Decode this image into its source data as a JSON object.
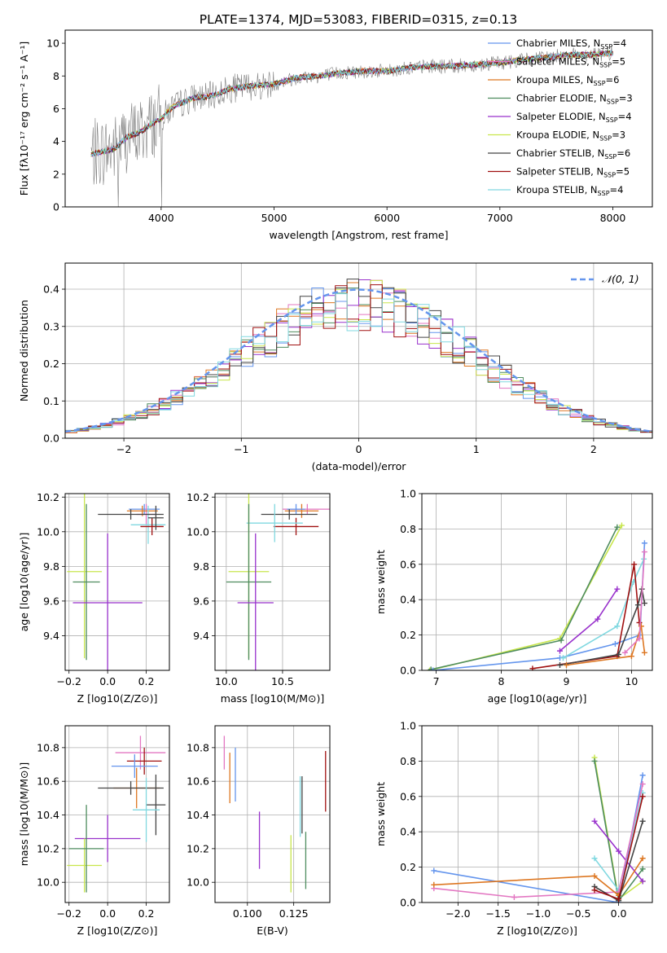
{
  "title": "PLATE=1374, MJD=53083, FIBERID=0315, z=0.13",
  "colors": {
    "gray": "#808080",
    "cornflower": "#6495ed",
    "pink": "#e377c2",
    "orange": "#dd7722",
    "green": "#4e8c5e",
    "purple": "#9932cc",
    "yellowgreen": "#c8e64b",
    "darkgray": "#444444",
    "darkred": "#a01010",
    "cyan": "#80d8e0"
  },
  "chart_data": [
    {
      "id": "spectrum",
      "type": "line",
      "xlabel": "wavelength [Angstrom, rest frame]",
      "ylabel": "Flux [fλ10⁻¹⁷ erg cm⁻² s⁻¹ A⁻¹]",
      "xlim": [
        3150,
        8350
      ],
      "ylim": [
        0,
        10.8
      ],
      "xticks": [
        4000,
        5000,
        6000,
        7000,
        8000
      ],
      "yticks": [
        0,
        2,
        4,
        6,
        8,
        10
      ],
      "grid": false,
      "legend_position": "top-right",
      "legend": [
        {
          "text": "Chabrier MILES, N_SSP=4",
          "color": "#6495ed"
        },
        {
          "text": "Salpeter MILES, N_SSP=5",
          "color": "#e377c2"
        },
        {
          "text": "Kroupa MILES, N_SSP=6",
          "color": "#dd7722"
        },
        {
          "text": "Chabrier ELODIE, N_SSP=3",
          "color": "#4e8c5e"
        },
        {
          "text": "Salpeter ELODIE, N_SSP=4",
          "color": "#9932cc"
        },
        {
          "text": "Kroupa ELODIE, N_SSP=3",
          "color": "#c8e64b"
        },
        {
          "text": "Chabrier STELIB, N_SSP=6",
          "color": "#444444"
        },
        {
          "text": "Salpeter STELIB, N_SSP=5",
          "color": "#a01010"
        },
        {
          "text": "Kroupa STELIB, N_SSP=4",
          "color": "#80d8e0"
        }
      ],
      "continuum": {
        "x": [
          3380,
          3500,
          3600,
          3700,
          3800,
          3900,
          4000,
          4100,
          4200,
          4300,
          4400,
          4500,
          4600,
          4800,
          5000,
          5200,
          5400,
          5600,
          5800,
          6000,
          6200,
          6400,
          6600,
          6800,
          7000,
          7200,
          7400,
          7600,
          7800,
          8000
        ],
        "y": [
          3.2,
          3.4,
          3.6,
          4.3,
          4.5,
          5.0,
          5.4,
          6.1,
          6.4,
          6.7,
          6.7,
          6.9,
          7.2,
          7.4,
          7.5,
          7.9,
          8.0,
          8.2,
          8.3,
          8.3,
          8.5,
          8.6,
          8.6,
          8.7,
          8.8,
          9.0,
          9.1,
          9.3,
          9.3,
          9.4
        ]
      }
    },
    {
      "id": "residuals",
      "type": "histogram",
      "xlabel": "(data-model)/error",
      "ylabel": "Normed distribution",
      "xlim": [
        -2.5,
        2.5
      ],
      "ylim": [
        0,
        0.47
      ],
      "xticks": [
        -2,
        -1,
        0,
        1,
        2
      ],
      "yticks": [
        0.0,
        0.1,
        0.2,
        0.3,
        0.4
      ],
      "grid": true,
      "legend_position": "top-right",
      "legend": [
        {
          "text": "𝒩(0, 1)",
          "color": "#6495ed",
          "style": "dashed"
        }
      ],
      "gaussian": {
        "mean": 0,
        "sigma": 1
      }
    },
    {
      "id": "age-vs-Z",
      "type": "errorbar",
      "xlabel": "Z [log10(Z/Z⊙)]",
      "ylabel": "age  [log10(age/yr)]",
      "xlim": [
        -0.22,
        0.32
      ],
      "ylim": [
        9.2,
        10.22
      ],
      "xticks": [
        -0.2,
        0.0,
        0.2
      ],
      "yticks": [
        9.4,
        9.6,
        9.8,
        10.0,
        10.2
      ],
      "grid": true,
      "points": [
        {
          "x": 0.19,
          "xerr": 0.08,
          "y": 10.13,
          "yerr": 0.03,
          "color": "#6495ed"
        },
        {
          "x": 0.2,
          "xerr": 0.05,
          "y": 10.1,
          "yerr": 0.06,
          "color": "#e377c2"
        },
        {
          "x": 0.18,
          "xerr": 0.08,
          "y": 10.12,
          "yerr": 0.03,
          "color": "#dd7722"
        },
        {
          "x": 0.21,
          "xerr": 0.09,
          "y": 10.04,
          "yerr": 0.11,
          "color": "#80d8e0"
        },
        {
          "x": 0.12,
          "xerr": 0.17,
          "y": 10.1,
          "yerr": 0.03,
          "color": "#444444"
        },
        {
          "x": 0.23,
          "xerr": 0.06,
          "y": 10.03,
          "yerr": 0.05,
          "color": "#a01010"
        },
        {
          "x": 0.25,
          "xerr": 0.04,
          "y": 10.08,
          "yerr": 0.07,
          "color": "#444444"
        },
        {
          "x": -0.12,
          "xerr": 0.09,
          "y": 9.77,
          "yerr": 0.5,
          "color": "#c8e64b"
        },
        {
          "x": -0.11,
          "xerr": 0.07,
          "y": 9.71,
          "yerr": 0.45,
          "color": "#4e8c5e"
        },
        {
          "x": 0.0,
          "xerr": 0.18,
          "y": 9.59,
          "yerr": 0.4,
          "color": "#9932cc"
        }
      ]
    },
    {
      "id": "age-vs-mass",
      "type": "errorbar",
      "xlabel": "mass [log10(M/M⊙)]",
      "ylabel": "",
      "xlim": [
        9.9,
        10.92
      ],
      "ylim": [
        9.2,
        10.22
      ],
      "xticks": [
        10.0,
        10.5
      ],
      "yticks": [
        9.4,
        9.6,
        9.8,
        10.0,
        10.2
      ],
      "grid": true,
      "points": [
        {
          "x": 10.72,
          "xerr": 0.22,
          "y": 10.13,
          "yerr": 0.03,
          "color": "#e377c2"
        },
        {
          "x": 10.67,
          "xerr": 0.15,
          "y": 10.12,
          "yerr": 0.04,
          "color": "#dd7722"
        },
        {
          "x": 10.62,
          "xerr": 0.08,
          "y": 10.13,
          "yerr": 0.03,
          "color": "#6495ed"
        },
        {
          "x": 10.56,
          "xerr": 0.25,
          "y": 10.1,
          "yerr": 0.03,
          "color": "#444444"
        },
        {
          "x": 10.62,
          "xerr": 0.2,
          "y": 10.03,
          "yerr": 0.05,
          "color": "#a01010"
        },
        {
          "x": 10.43,
          "xerr": 0.25,
          "y": 10.05,
          "yerr": 0.11,
          "color": "#80d8e0"
        },
        {
          "x": 10.2,
          "xerr": 0.18,
          "y": 9.77,
          "yerr": 0.5,
          "color": "#c8e64b"
        },
        {
          "x": 10.2,
          "xerr": 0.2,
          "y": 9.71,
          "yerr": 0.45,
          "color": "#4e8c5e"
        },
        {
          "x": 10.26,
          "xerr": 0.16,
          "y": 9.59,
          "yerr": 0.4,
          "color": "#9932cc"
        }
      ]
    },
    {
      "id": "mass-weight-vs-age",
      "type": "line",
      "xlabel": "age  [log10(age/yr)]",
      "ylabel": "mass weight",
      "xlim": [
        6.78,
        10.32
      ],
      "ylim": [
        0.0,
        1.0
      ],
      "xticks": [
        7,
        8,
        9,
        10
      ],
      "yticks": [
        0.0,
        0.2,
        0.4,
        0.6,
        0.8,
        1.0
      ],
      "grid": true,
      "series": [
        {
          "color": "#c8e64b",
          "x": [
            6.9,
            8.9,
            9.85
          ],
          "y": [
            0.0,
            0.18,
            0.82
          ]
        },
        {
          "color": "#4e8c5e",
          "x": [
            6.92,
            8.92,
            9.78
          ],
          "y": [
            0.005,
            0.17,
            0.81
          ]
        },
        {
          "color": "#6495ed",
          "x": [
            6.95,
            8.9,
            9.75,
            10.13,
            10.2
          ],
          "y": [
            0.0,
            0.07,
            0.15,
            0.2,
            0.72
          ]
        },
        {
          "color": "#9932cc",
          "x": [
            8.9,
            9.48,
            9.78
          ],
          "y": [
            0.11,
            0.29,
            0.46
          ]
        },
        {
          "color": "#80d8e0",
          "x": [
            8.95,
            9.78,
            10.03,
            10.19
          ],
          "y": [
            0.07,
            0.25,
            0.5,
            0.63
          ]
        },
        {
          "color": "#a01010",
          "x": [
            8.48,
            9.78,
            10.04,
            10.12
          ],
          "y": [
            0.01,
            0.08,
            0.6,
            0.27
          ]
        },
        {
          "color": "#444444",
          "x": [
            8.9,
            9.8,
            10.1,
            10.16,
            10.2
          ],
          "y": [
            0.03,
            0.09,
            0.37,
            0.46,
            0.38
          ]
        },
        {
          "color": "#dd7722",
          "x": [
            9.0,
            10.0,
            10.15,
            10.2
          ],
          "y": [
            0.03,
            0.08,
            0.25,
            0.1
          ]
        },
        {
          "color": "#e377c2",
          "x": [
            9.9,
            10.12,
            10.2
          ],
          "y": [
            0.1,
            0.18,
            0.67
          ]
        }
      ]
    },
    {
      "id": "mass-vs-Z",
      "type": "errorbar",
      "xlabel": "Z [log10(Z/Z⊙)]",
      "ylabel": "mass [log10(M/M⊙)]",
      "xlim": [
        -0.22,
        0.32
      ],
      "ylim": [
        9.88,
        10.93
      ],
      "xticks": [
        -0.2,
        0.0,
        0.2
      ],
      "yticks": [
        10.0,
        10.2,
        10.4,
        10.6,
        10.8
      ],
      "grid": true,
      "points": [
        {
          "x": 0.17,
          "xerr": 0.13,
          "y": 10.77,
          "yerr": 0.1,
          "color": "#e377c2"
        },
        {
          "x": 0.19,
          "xerr": 0.09,
          "y": 10.72,
          "yerr": 0.08,
          "color": "#a01010"
        },
        {
          "x": 0.14,
          "xerr": 0.12,
          "y": 10.69,
          "yerr": 0.07,
          "color": "#6495ed"
        },
        {
          "x": 0.15,
          "xerr": 0.12,
          "y": 10.56,
          "yerr": 0.12,
          "color": "#dd7722"
        },
        {
          "x": 0.12,
          "xerr": 0.17,
          "y": 10.56,
          "yerr": 0.04,
          "color": "#444444"
        },
        {
          "x": 0.25,
          "xerr": 0.05,
          "y": 10.46,
          "yerr": 0.18,
          "color": "#444444"
        },
        {
          "x": 0.2,
          "xerr": 0.07,
          "y": 10.43,
          "yerr": 0.19,
          "color": "#80d8e0"
        },
        {
          "x": 0.0,
          "xerr": 0.17,
          "y": 10.26,
          "yerr": 0.14,
          "color": "#9932cc"
        },
        {
          "x": -0.12,
          "xerr": 0.09,
          "y": 10.1,
          "yerr": 0.16,
          "color": "#c8e64b"
        },
        {
          "x": -0.11,
          "xerr": 0.09,
          "y": 10.2,
          "yerr": 0.26,
          "color": "#4e8c5e"
        }
      ]
    },
    {
      "id": "mass-vs-ebv",
      "type": "errorbar",
      "xlabel": "E(B-V)",
      "ylabel": "",
      "xlim": [
        0.0825,
        0.1445
      ],
      "ylim": [
        9.88,
        10.93
      ],
      "xticks": [
        0.1,
        0.125
      ],
      "xtick_labels": [
        "0.100",
        "0.125"
      ],
      "yticks": [
        10.0,
        10.2,
        10.4,
        10.6,
        10.8
      ],
      "grid": true,
      "points": [
        {
          "x": 0.0875,
          "y": 10.77,
          "yerr": 0.1,
          "color": "#e377c2"
        },
        {
          "x": 0.0905,
          "y": 10.62,
          "yerr": 0.15,
          "color": "#dd7722"
        },
        {
          "x": 0.0935,
          "y": 10.64,
          "yerr": 0.16,
          "color": "#6495ed"
        },
        {
          "x": 0.1065,
          "y": 10.25,
          "yerr": 0.17,
          "color": "#9932cc"
        },
        {
          "x": 0.1235,
          "y": 10.11,
          "yerr": 0.17,
          "color": "#c8e64b"
        },
        {
          "x": 0.1285,
          "y": 10.45,
          "yerr": 0.18,
          "color": "#80d8e0"
        },
        {
          "x": 0.1315,
          "y": 10.13,
          "yerr": 0.17,
          "color": "#4e8c5e"
        },
        {
          "x": 0.1422,
          "y": 10.6,
          "yerr": 0.18,
          "color": "#a01010"
        },
        {
          "x": 0.1295,
          "y": 10.46,
          "yerr": 0.17,
          "color": "#444444"
        }
      ]
    },
    {
      "id": "mass-weight-vs-Z",
      "type": "line",
      "xlabel": "Z [log10(Z/Z⊙)]",
      "ylabel": "mass weight",
      "xlim": [
        -2.45,
        0.42
      ],
      "ylim": [
        0.0,
        1.0
      ],
      "xticks": [
        -2.0,
        -1.5,
        -1.0,
        -0.5,
        0.0
      ],
      "yticks": [
        0.0,
        0.2,
        0.4,
        0.6,
        0.8,
        1.0
      ],
      "grid": true,
      "series": [
        {
          "color": "#c8e64b",
          "x": [
            -0.3,
            0.0,
            0.3
          ],
          "y": [
            0.82,
            0.02,
            0.12
          ]
        },
        {
          "color": "#4e8c5e",
          "x": [
            -0.3,
            0.0,
            0.3
          ],
          "y": [
            0.8,
            0.01,
            0.19
          ]
        },
        {
          "color": "#9932cc",
          "x": [
            -0.3,
            0.0,
            0.3
          ],
          "y": [
            0.46,
            0.29,
            0.12
          ]
        },
        {
          "color": "#80d8e0",
          "x": [
            -0.3,
            0.0,
            0.3
          ],
          "y": [
            0.25,
            0.07,
            0.62
          ]
        },
        {
          "color": "#6495ed",
          "x": [
            -2.3,
            0.0,
            0.3
          ],
          "y": [
            0.18,
            0.0,
            0.72
          ]
        },
        {
          "color": "#e377c2",
          "x": [
            -2.3,
            -1.3,
            0.0,
            0.3
          ],
          "y": [
            0.08,
            0.03,
            0.06,
            0.67
          ]
        },
        {
          "color": "#dd7722",
          "x": [
            -2.3,
            -0.3,
            0.0,
            0.3
          ],
          "y": [
            0.1,
            0.15,
            0.04,
            0.25
          ]
        },
        {
          "color": "#444444",
          "x": [
            -0.3,
            0.0,
            0.3
          ],
          "y": [
            0.09,
            0.01,
            0.46
          ]
        },
        {
          "color": "#a01010",
          "x": [
            -0.3,
            0.0,
            0.3
          ],
          "y": [
            0.07,
            0.02,
            0.6
          ]
        }
      ]
    }
  ]
}
